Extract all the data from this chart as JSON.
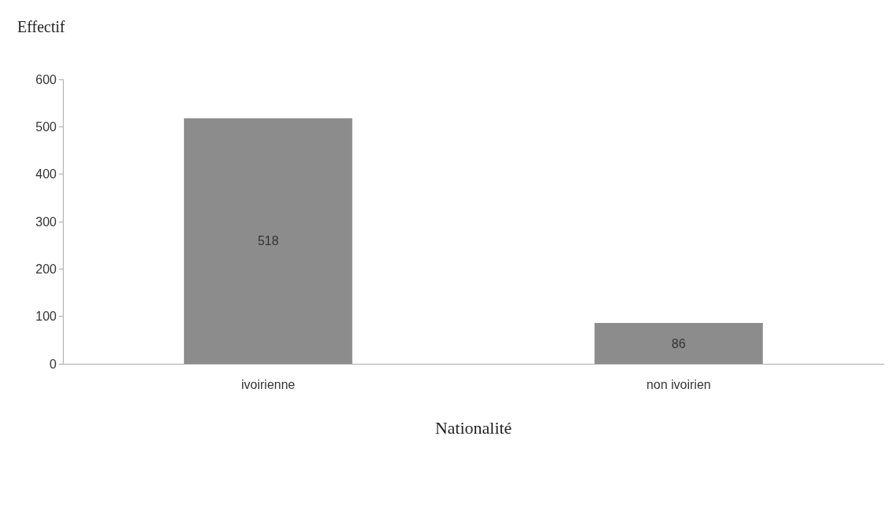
{
  "chart_data": {
    "type": "bar",
    "xlabel": "Nationalité",
    "ylabel": "Effectif",
    "categories": [
      "ivoirienne",
      "non ivoirien"
    ],
    "values": [
      518,
      86
    ],
    "color": "#8c8c8c",
    "ylim": [
      0,
      600
    ],
    "yticks": [
      0,
      100,
      200,
      300,
      400,
      500,
      600
    ],
    "grid": false,
    "data_labels": true
  }
}
